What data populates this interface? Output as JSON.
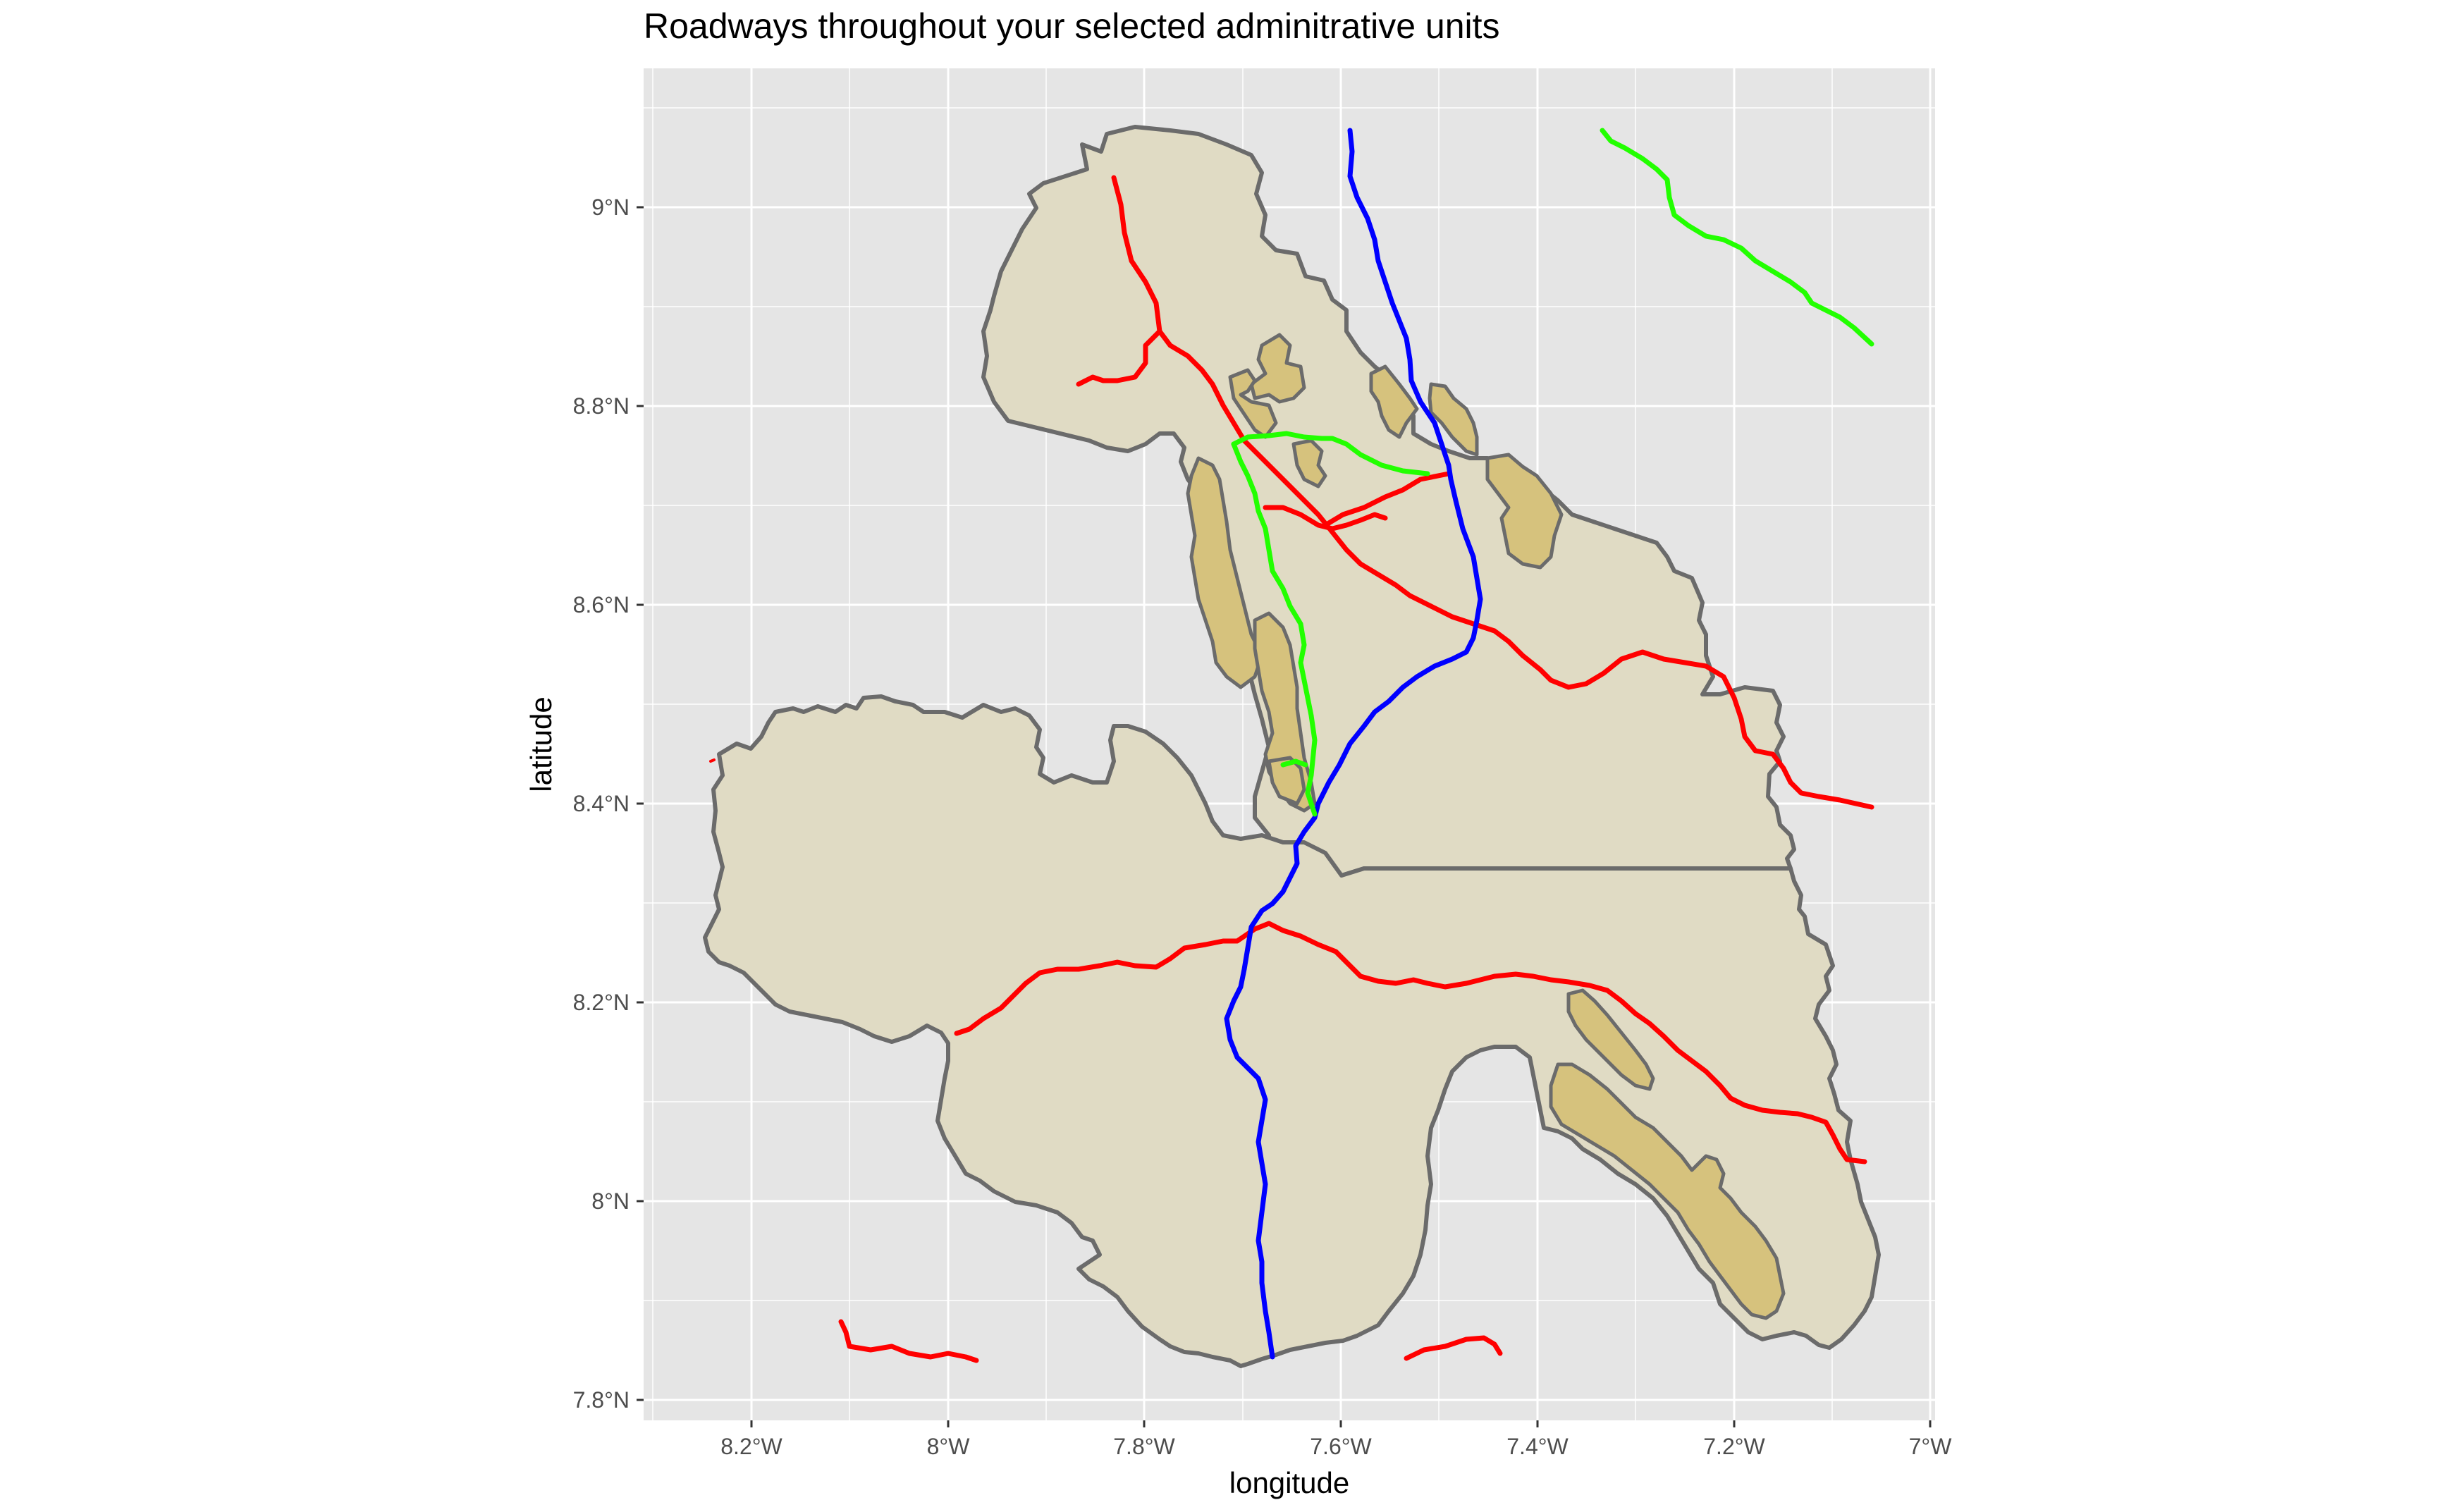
{
  "map": {
    "title": "Roadways throughout your selected adminitrative units",
    "xlabel": "longitude",
    "ylabel": "latitude",
    "x_ticks": [
      "8.2°W",
      "8°W",
      "7.8°W",
      "7.6°W",
      "7.4°W",
      "7.2°W",
      "7°W"
    ],
    "y_ticks": [
      "7.8°N",
      "8°N",
      "8.2°N",
      "8.4°N",
      "8.6°N",
      "8.8°N",
      "9°N"
    ],
    "background_color": "#e5e5e5",
    "grid": true,
    "colors": {
      "land_fill": "#e0dbc4",
      "land_border": "#6b6b6b",
      "protected_area_fill": "#d6c27d",
      "road_red": "#ff0000",
      "road_blue": "#0000ff",
      "road_green": "#22ff00"
    }
  }
}
